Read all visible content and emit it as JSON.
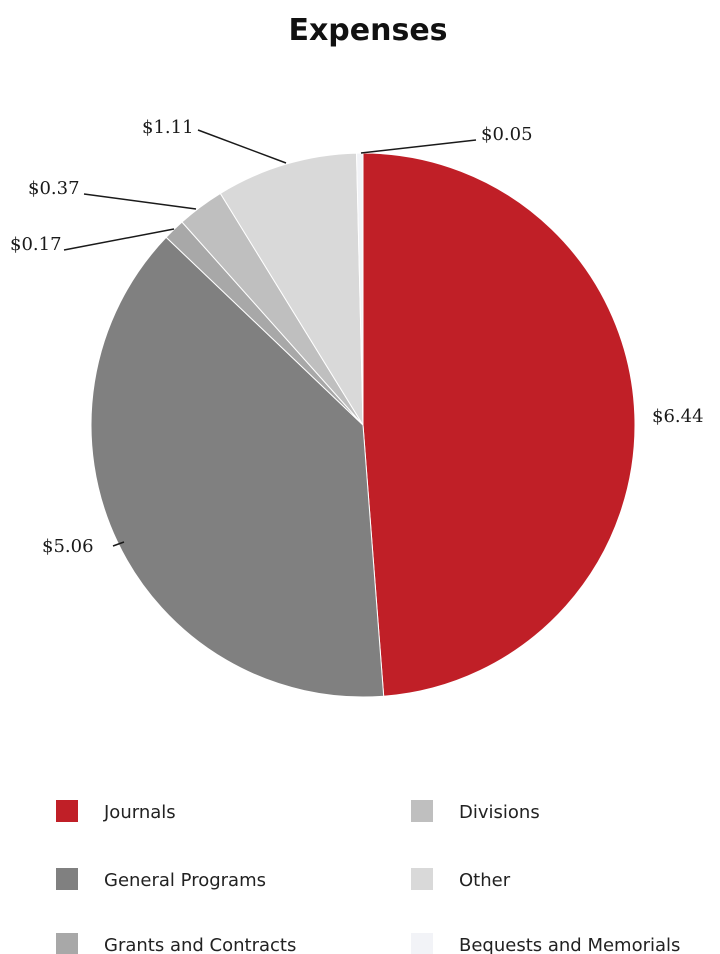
{
  "chart_data": {
    "type": "pie",
    "title": "Expenses",
    "categories": [
      "Journals",
      "General Programs",
      "Grants and Contracts",
      "Divisions",
      "Other",
      "Bequests and Memorials"
    ],
    "values": [
      6.44,
      5.06,
      0.17,
      0.37,
      1.11,
      0.05
    ],
    "data_labels": [
      "$6.44",
      "$5.06",
      "$0.17",
      "$0.37",
      "$1.11",
      "$0.05"
    ],
    "colors": [
      "#c01f27",
      "#808080",
      "#a8a8a8",
      "#bfbfbf",
      "#d9d9d9",
      "#f2f3f7"
    ],
    "legend_placement": "bottom",
    "start_angle_deg": 0,
    "direction": "clockwise"
  }
}
